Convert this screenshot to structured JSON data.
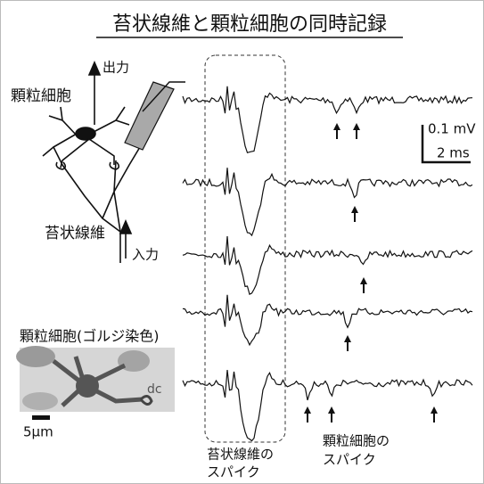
{
  "title": "苔状線維と顆粒細胞の同時記録",
  "diagram": {
    "output_label": "出力",
    "granule_cell_label": "顆粒細胞",
    "mossy_fiber_label": "苔状線維",
    "input_label": "入力"
  },
  "micrograph": {
    "title": "顆粒細胞(ゴルジ染色)",
    "dendrite_label": "dc",
    "scale_bar": "5μm"
  },
  "traces": {
    "scale_voltage": "0.1 mV",
    "scale_time": "2 ms"
  },
  "annotations": {
    "mossy_fiber_spike": [
      "苔状線維の",
      "スパイク"
    ],
    "granule_cell_spike": [
      "顆粒細胞の",
      "スパイク"
    ]
  }
}
